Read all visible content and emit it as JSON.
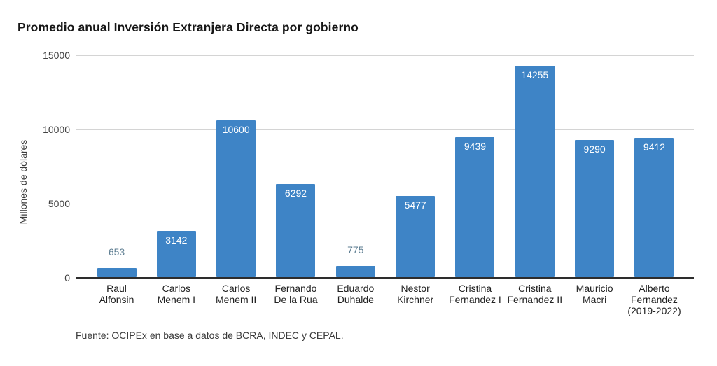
{
  "chart": {
    "title": "Promedio anual Inversión Extranjera Directa por gobierno",
    "y_axis_title": "Millones de dólares",
    "source_note": "Fuente: OCIPEx en base a datos de BCRA, INDEC y CEPAL."
  },
  "chart_data": {
    "type": "bar",
    "title": "Promedio anual Inversión Extranjera Directa por gobierno",
    "xlabel": "",
    "ylabel": "Millones de dólares",
    "categories": [
      "Raul Alfonsin",
      "Carlos Menem I",
      "Carlos Menem II",
      "Fernando De la Rua",
      "Eduardo Duhalde",
      "Nestor Kirchner",
      "Cristina Fernandez I",
      "Cristina Fernandez II",
      "Mauricio Macri",
      "Alberto Fernandez (2019-2022)"
    ],
    "category_label_lines": [
      [
        "Raul",
        "Alfonsin"
      ],
      [
        "Carlos",
        "Menem I"
      ],
      [
        "Carlos",
        "Menem II"
      ],
      [
        "Fernando",
        "De la Rua"
      ],
      [
        "Eduardo",
        "Duhalde"
      ],
      [
        "Nestor",
        "Kirchner"
      ],
      [
        "Cristina",
        "Fernandez I"
      ],
      [
        "Cristina",
        "Fernandez II"
      ],
      [
        "Mauricio",
        "Macri"
      ],
      [
        "Alberto",
        "Fernandez",
        "(2019-2022)"
      ]
    ],
    "values": [
      653,
      3142,
      10600,
      6292,
      775,
      5477,
      9439,
      14255,
      9290,
      9412
    ],
    "ylim": [
      0,
      15000
    ],
    "yticks": [
      0,
      5000,
      10000,
      15000
    ],
    "grid": true,
    "legend": false,
    "annotation": "Fuente: OCIPEx en base a datos de BCRA, INDEC y CEPAL."
  },
  "colors": {
    "bar_fill": "#3e84c6",
    "data_label_inside": "#ffffff",
    "data_label_above": "#5e7e92",
    "gridline": "#d4d4d4",
    "axis_line": "#2d2d2d",
    "background": "#ffffff"
  }
}
